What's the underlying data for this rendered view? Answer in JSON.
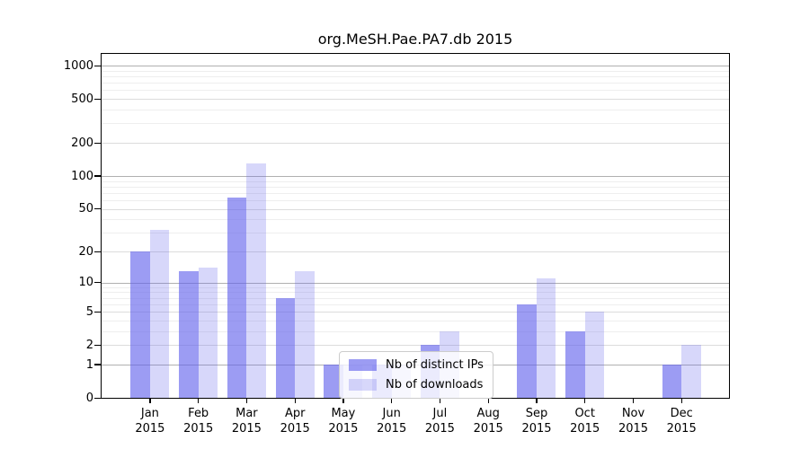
{
  "chart_data": {
    "type": "bar",
    "title": "org.MeSH.Pae.PA7.db 2015",
    "categories": [
      "Jan 2015",
      "Feb 2015",
      "Mar 2015",
      "Apr 2015",
      "May 2015",
      "Jun 2015",
      "Jul 2015",
      "Aug 2015",
      "Sep 2015",
      "Oct 2015",
      "Nov 2015",
      "Dec 2015"
    ],
    "month_labels": [
      "Jan",
      "Feb",
      "Mar",
      "Apr",
      "May",
      "Jun",
      "Jul",
      "Aug",
      "Sep",
      "Oct",
      "Nov",
      "Dec"
    ],
    "year": "2015",
    "series": [
      {
        "name": "Nb of distinct IPs",
        "color": "rgba(96,96,235,0.62)",
        "values": [
          20,
          13,
          63,
          7,
          1,
          1,
          2,
          0,
          6,
          3,
          0,
          1
        ]
      },
      {
        "name": "Nb of downloads",
        "color": "rgba(96,96,235,0.25)",
        "values": [
          32,
          14,
          129,
          13,
          1,
          1,
          3,
          0,
          11,
          5,
          0,
          2
        ]
      }
    ],
    "y_axis": {
      "scale": "log1p",
      "ticks": [
        0,
        1,
        2,
        5,
        10,
        20,
        50,
        100,
        200,
        500,
        1000
      ],
      "ylim": [
        0,
        1276
      ]
    },
    "grid": "horizontal",
    "legend_position": "inside-bottom-center",
    "colors": {
      "bar_dark_flat": "#a0a0f0",
      "bar_light_flat": "#d8d8f8",
      "grid_major": "#b0b0b0",
      "grid_minor": "#eeeeee",
      "axis": "#000000"
    }
  }
}
